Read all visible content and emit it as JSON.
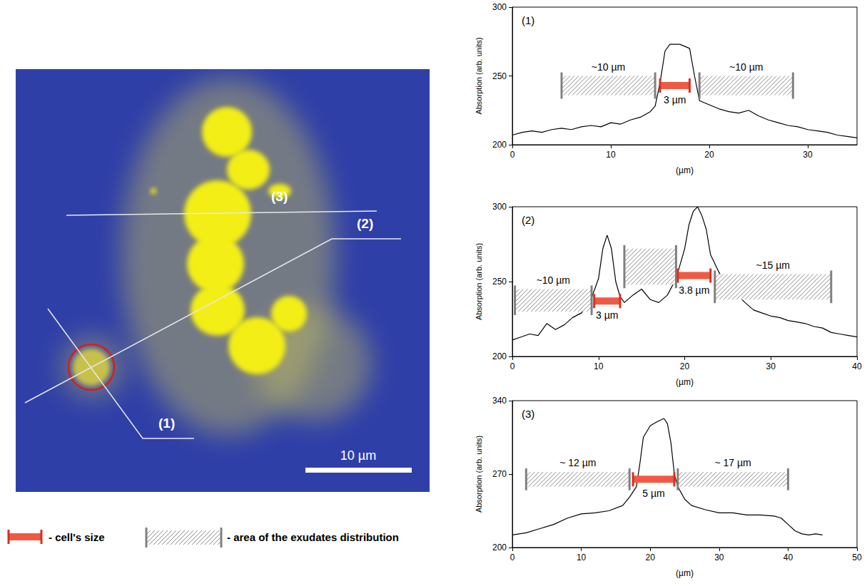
{
  "image": {
    "scale_bar": "10 µm",
    "profile_labels": [
      "(1)",
      "(2)",
      "(3)"
    ]
  },
  "key": {
    "cell_size": "- cell's size",
    "exudates_area": "- area of the exudates distribution"
  },
  "chart_data": [
    {
      "type": "line",
      "title": "(1)",
      "xlabel": "(µm)",
      "ylabel": "Absorption (arb. units)",
      "color": "#000000",
      "grid": false,
      "xlim": [
        0,
        35
      ],
      "xticks": [
        0,
        10,
        20,
        30
      ],
      "ylim": [
        200,
        300
      ],
      "yticks": [
        200,
        250,
        300
      ],
      "x": [
        0,
        1,
        2,
        3,
        4,
        5,
        6,
        7,
        8,
        9,
        10,
        11,
        12,
        13,
        14,
        14.5,
        15,
        15.5,
        16,
        17,
        18,
        18.5,
        19,
        20,
        21,
        22,
        23,
        24,
        25,
        26,
        27,
        28,
        29,
        30,
        31,
        32,
        33,
        34,
        35
      ],
      "values": [
        207,
        209,
        210,
        209,
        211,
        212,
        211,
        213,
        214,
        213,
        216,
        215,
        218,
        220,
        224,
        228,
        245,
        268,
        273,
        273,
        270,
        250,
        232,
        229,
        226,
        224,
        223,
        225,
        221,
        218,
        216,
        214,
        213,
        211,
        210,
        209,
        207,
        206,
        205
      ],
      "exudate_areas": [
        {
          "x": [
            5,
            14.5
          ],
          "y": [
            236,
            250
          ],
          "label": "~10 µm"
        },
        {
          "x": [
            19,
            28.5
          ],
          "y": [
            236,
            250
          ],
          "label": "~10 µm"
        }
      ],
      "cell_sizes": [
        {
          "x": [
            15,
            18
          ],
          "y": 243,
          "label": "3 µm"
        }
      ]
    },
    {
      "type": "line",
      "title": "(2)",
      "xlabel": "(µm)",
      "ylabel": "Absorption (arb. units)",
      "color": "#000000",
      "grid": false,
      "xlim": [
        0,
        40
      ],
      "xticks": [
        0,
        10,
        20,
        30,
        40
      ],
      "ylim": [
        200,
        300
      ],
      "yticks": [
        200,
        250,
        300
      ],
      "x": [
        0,
        1,
        2,
        3,
        4,
        5,
        6,
        7,
        8,
        9,
        10,
        10.5,
        11,
        11.5,
        12,
        12.5,
        13,
        14,
        15,
        16,
        17,
        18,
        19,
        20,
        20.5,
        21,
        21.5,
        22,
        22.5,
        23,
        24,
        25,
        26,
        27,
        28,
        29,
        30,
        31,
        32,
        33,
        34,
        35,
        36,
        37,
        38,
        39,
        40
      ],
      "values": [
        211,
        213,
        215,
        214,
        222,
        218,
        221,
        226,
        229,
        236,
        252,
        272,
        281,
        272,
        250,
        240,
        236,
        241,
        245,
        238,
        236,
        241,
        252,
        272,
        288,
        297,
        300,
        294,
        285,
        268,
        256,
        246,
        242,
        236,
        231,
        229,
        227,
        226,
        224,
        223,
        222,
        220,
        219,
        216,
        215,
        214,
        213
      ],
      "exudate_areas": [
        {
          "x": [
            0.3,
            9.2
          ],
          "y": [
            230,
            245
          ],
          "label": "~10 µm"
        },
        {
          "x": [
            13,
            19
          ],
          "y": [
            248,
            272
          ]
        },
        {
          "x": [
            23.5,
            37
          ],
          "y": [
            238,
            255
          ],
          "label": "~15 µm"
        }
      ],
      "cell_sizes": [
        {
          "x": [
            9.5,
            12.5
          ],
          "y": 237,
          "label": "3 µm"
        },
        {
          "x": [
            19.2,
            23
          ],
          "y": 254,
          "label": "3.8 µm"
        }
      ]
    },
    {
      "type": "line",
      "title": "(3)",
      "xlabel": "(µm)",
      "ylabel": "Absorption (arb. units)",
      "color": "#000000",
      "grid": false,
      "xlim": [
        0,
        50
      ],
      "xticks": [
        0,
        10,
        20,
        30,
        40,
        50
      ],
      "ylim": [
        200,
        340
      ],
      "yticks": [
        200,
        270,
        340
      ],
      "x": [
        0,
        2,
        4,
        6,
        8,
        10,
        12,
        14,
        16,
        17,
        18,
        18.5,
        19,
        20,
        21,
        22,
        22.5,
        23,
        23.5,
        24,
        25,
        26,
        28,
        30,
        32,
        34,
        36,
        38,
        39,
        40,
        41,
        42,
        43,
        44,
        45
      ],
      "values": [
        212,
        214,
        218,
        222,
        228,
        232,
        233,
        235,
        240,
        248,
        258,
        280,
        305,
        316,
        320,
        323,
        318,
        300,
        270,
        258,
        246,
        240,
        236,
        233,
        233,
        231,
        231,
        230,
        228,
        222,
        216,
        213,
        212,
        213,
        212
      ],
      "exudate_areas": [
        {
          "x": [
            2,
            17
          ],
          "y": [
            258,
            272
          ],
          "label": "~ 12 µm"
        },
        {
          "x": [
            24,
            40
          ],
          "y": [
            258,
            272
          ],
          "label": "~ 17 µm"
        }
      ],
      "cell_sizes": [
        {
          "x": [
            17.5,
            23.5
          ],
          "y": 265,
          "label": "5 µm"
        }
      ]
    }
  ]
}
